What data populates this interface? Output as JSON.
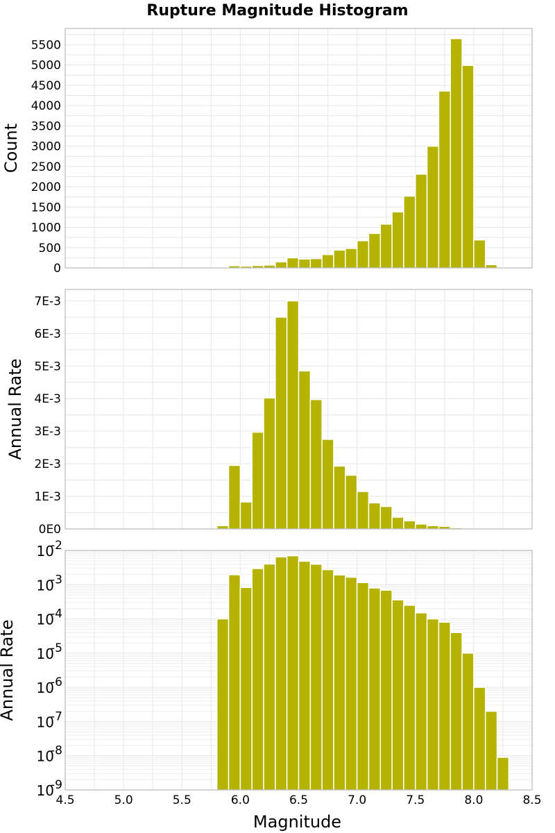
{
  "title": "Rupture Magnitude Histogram",
  "bar_color": "#b5b300",
  "chart_data": [
    {
      "type": "bar",
      "title": "Rupture Magnitude Histogram",
      "xlabel": "",
      "ylabel": "Count",
      "xlim": [
        4.5,
        8.5
      ],
      "ylim": [
        0,
        5900
      ],
      "yticks": [
        0,
        500,
        1000,
        1500,
        2000,
        2500,
        3000,
        3500,
        4000,
        4500,
        5000,
        5500
      ],
      "ytick_labels": [
        "0",
        "500",
        "1000",
        "1500",
        "2000",
        "2500",
        "3000",
        "3500",
        "4000",
        "4500",
        "5000",
        "5500"
      ],
      "scale": "linear",
      "grid": true,
      "bin_width": 0.1,
      "x": [
        5.85,
        5.95,
        6.05,
        6.15,
        6.25,
        6.35,
        6.45,
        6.55,
        6.65,
        6.75,
        6.85,
        6.95,
        7.05,
        7.15,
        7.25,
        7.35,
        7.45,
        7.55,
        7.65,
        7.75,
        7.85,
        7.95,
        8.05,
        8.15,
        8.25
      ],
      "values": [
        15,
        55,
        45,
        60,
        70,
        150,
        250,
        220,
        230,
        330,
        440,
        480,
        670,
        850,
        1080,
        1380,
        1770,
        2310,
        3000,
        4360,
        5650,
        4990,
        690,
        80,
        5
      ]
    },
    {
      "type": "bar",
      "xlabel": "",
      "ylabel": "Annual Rate",
      "xlim": [
        4.5,
        8.5
      ],
      "ylim": [
        0,
        0.00735
      ],
      "yticks": [
        0,
        0.001,
        0.002,
        0.003,
        0.004,
        0.005,
        0.006,
        0.007
      ],
      "ytick_labels": [
        "0E0",
        "1E-3",
        "2E-3",
        "3E-3",
        "4E-3",
        "5E-3",
        "6E-3",
        "7E-3"
      ],
      "scale": "linear",
      "grid": true,
      "bin_width": 0.1,
      "x": [
        5.85,
        5.95,
        6.05,
        6.15,
        6.25,
        6.35,
        6.45,
        6.55,
        6.65,
        6.75,
        6.85,
        6.95,
        7.05,
        7.15,
        7.25,
        7.35,
        7.45,
        7.55,
        7.65,
        7.75,
        7.85,
        7.95,
        8.05,
        8.15,
        8.25
      ],
      "values": [
        0.0001,
        0.00195,
        0.00083,
        0.00297,
        0.00402,
        0.0065,
        0.007,
        0.00485,
        0.00397,
        0.00275,
        0.00193,
        0.00165,
        0.00115,
        0.0008,
        0.00069,
        0.00036,
        0.00025,
        0.00015,
        0.0001,
        8e-05,
        4e-05,
        1e-05,
        1e-06,
        2e-07,
        9e-09
      ]
    },
    {
      "type": "bar",
      "xlabel": "Magnitude",
      "ylabel": "Annual Rate",
      "xlim": [
        4.5,
        8.5
      ],
      "ylim": [
        1e-09,
        0.01
      ],
      "scale": "log",
      "grid": true,
      "yticks": [
        1e-09,
        1e-08,
        1e-07,
        1e-06,
        1e-05,
        0.0001,
        0.001,
        0.01
      ],
      "ytick_exponents": [
        "-9",
        "-8",
        "-7",
        "-6",
        "-5",
        "-4",
        "-3",
        "-2"
      ],
      "ytick_base": "10",
      "xticks": [
        4.5,
        5.0,
        5.5,
        6.0,
        6.5,
        7.0,
        7.5,
        8.0,
        8.5
      ],
      "xtick_labels": [
        "4.5",
        "5.0",
        "5.5",
        "6.0",
        "6.5",
        "7.0",
        "7.5",
        "8.0",
        "8.5"
      ],
      "bin_width": 0.1,
      "x": [
        5.85,
        5.95,
        6.05,
        6.15,
        6.25,
        6.35,
        6.45,
        6.55,
        6.65,
        6.75,
        6.85,
        6.95,
        7.05,
        7.15,
        7.25,
        7.35,
        7.45,
        7.55,
        7.65,
        7.75,
        7.85,
        7.95,
        8.05,
        8.15,
        8.25
      ],
      "values": [
        0.0001,
        0.00195,
        0.00083,
        0.00297,
        0.00402,
        0.0065,
        0.007,
        0.00485,
        0.00397,
        0.00275,
        0.00193,
        0.00165,
        0.00115,
        0.0008,
        0.00069,
        0.00036,
        0.00025,
        0.00015,
        0.0001,
        8e-05,
        4e-05,
        1e-05,
        1e-06,
        2e-07,
        9e-09
      ]
    }
  ]
}
